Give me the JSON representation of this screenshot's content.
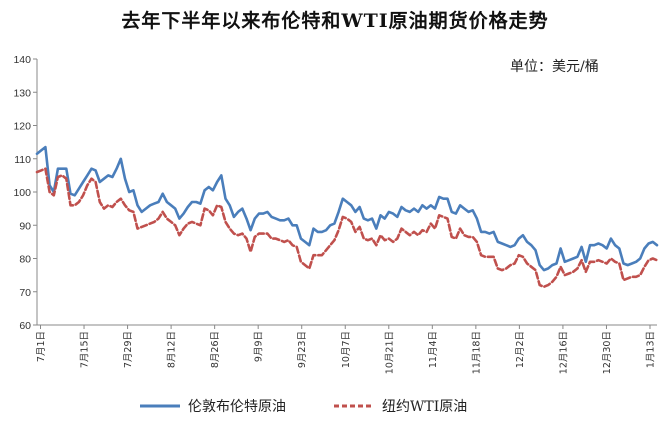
{
  "chart_data": {
    "type": "line",
    "title": "去年下半年以来布伦特和WTI原油期货价格走势",
    "unit": "单位：美元/桶",
    "ylim": [
      60,
      140
    ],
    "yticks": [
      60,
      70,
      80,
      90,
      100,
      110,
      120,
      130,
      140
    ],
    "grid": false,
    "legend_position": "bottom",
    "x_tick_labels": [
      "7月1日",
      "7月15日",
      "7月29日",
      "8月12日",
      "8月26日",
      "9月9日",
      "9月23日",
      "10月7日",
      "10月21日",
      "11月4日",
      "11月18日",
      "12月2日",
      "12月16日",
      "12月30日",
      "1月13日"
    ],
    "series": [
      {
        "name": "伦敦布伦特原油",
        "color": "#4a7ebb",
        "style": "solid",
        "values": [
          111.5,
          112.5,
          113.5,
          102,
          100,
          107,
          107,
          107,
          99.5,
          99,
          101,
          103,
          105,
          107,
          106.5,
          103,
          104,
          105,
          104.5,
          107,
          110,
          104,
          100,
          100.5,
          96,
          94,
          95,
          96,
          96.5,
          97,
          99.5,
          97,
          96,
          95,
          92,
          93.5,
          95.5,
          97,
          97,
          96.5,
          100.5,
          101.5,
          100.5,
          103,
          105,
          98,
          96,
          92.5,
          94,
          95,
          92,
          88.5,
          92,
          93.5,
          93.5,
          94,
          92.5,
          92,
          91.5,
          91.5,
          92,
          90,
          90,
          86,
          85,
          84,
          89,
          88,
          88,
          88.5,
          90,
          90.5,
          94,
          98,
          97,
          96,
          94,
          95.5,
          92,
          91.5,
          92,
          89,
          93,
          92,
          94,
          93.5,
          92.5,
          95.5,
          94.5,
          94,
          95,
          94,
          96,
          95,
          96,
          95,
          98.5,
          98,
          98,
          94,
          93.5,
          96,
          95,
          94,
          94.5,
          92,
          88,
          88,
          87.5,
          88,
          85,
          84.5,
          84,
          83.5,
          84,
          86,
          87,
          85,
          84,
          82.5,
          78,
          76.5,
          77,
          78,
          78.5,
          83,
          79,
          79.5,
          80,
          80.5,
          83.5,
          79,
          84,
          84,
          84.5,
          84,
          83,
          86,
          84,
          83,
          78.5,
          78,
          78.5,
          79,
          80,
          83,
          84.5,
          85,
          84
        ]
      },
      {
        "name": "纽约WTI原油",
        "color": "#c0504d",
        "style": "dashed",
        "values": [
          106,
          106.5,
          107,
          100,
          99,
          104.5,
          105,
          104,
          96,
          96,
          97,
          99,
          102,
          104,
          103,
          97,
          95,
          96,
          95.5,
          97,
          98,
          96,
          94.5,
          94,
          89,
          89.5,
          90,
          90.5,
          91,
          92,
          94,
          92,
          91,
          90,
          87,
          89,
          90.5,
          91,
          90.5,
          90,
          95,
          94.5,
          93,
          96,
          95.5,
          91,
          89,
          87.5,
          87,
          87.5,
          86,
          82,
          86.5,
          87.5,
          87.5,
          87.5,
          86,
          86,
          85.5,
          85,
          85.5,
          84,
          83.5,
          79,
          78,
          77,
          81,
          81,
          81,
          82.5,
          84,
          85.5,
          88.5,
          92.5,
          92,
          91,
          88,
          89.5,
          86,
          85.5,
          86,
          84,
          87,
          85.5,
          86,
          85,
          86,
          89,
          88,
          87,
          88,
          87,
          88.5,
          88,
          90.5,
          89,
          93,
          92.5,
          92,
          86.5,
          86,
          89,
          87,
          86.5,
          86.5,
          85,
          81,
          80.5,
          80.5,
          80.5,
          77,
          76.5,
          77,
          78,
          78.5,
          81,
          80.5,
          78.5,
          77.5,
          76.5,
          72,
          71.5,
          72,
          73,
          74.5,
          77.5,
          75,
          75.5,
          76,
          77,
          79.5,
          76,
          79,
          79,
          79.5,
          79,
          78.5,
          80,
          79,
          78.5,
          73.5,
          74,
          74.5,
          74.5,
          75,
          77.5,
          79.5,
          80,
          79.5
        ]
      }
    ]
  }
}
